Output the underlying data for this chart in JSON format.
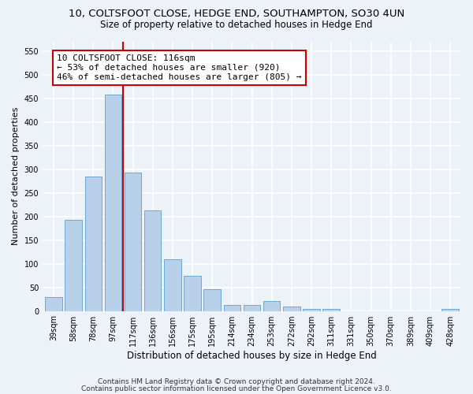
{
  "title1": "10, COLTSFOOT CLOSE, HEDGE END, SOUTHAMPTON, SO30 4UN",
  "title2": "Size of property relative to detached houses in Hedge End",
  "xlabel": "Distribution of detached houses by size in Hedge End",
  "ylabel": "Number of detached properties",
  "categories": [
    "39sqm",
    "58sqm",
    "78sqm",
    "97sqm",
    "117sqm",
    "136sqm",
    "156sqm",
    "175sqm",
    "195sqm",
    "214sqm",
    "234sqm",
    "253sqm",
    "272sqm",
    "292sqm",
    "311sqm",
    "331sqm",
    "350sqm",
    "370sqm",
    "389sqm",
    "409sqm",
    "428sqm"
  ],
  "values": [
    30,
    192,
    285,
    457,
    293,
    213,
    109,
    74,
    46,
    13,
    13,
    21,
    10,
    5,
    5,
    0,
    0,
    0,
    0,
    0,
    5
  ],
  "bar_color": "#b8d0ea",
  "bar_edge_color": "#6aaad4",
  "vline_x": 3.5,
  "vline_color": "#cc0000",
  "annotation_line1": "10 COLTSFOOT CLOSE: 116sqm",
  "annotation_line2": "← 53% of detached houses are smaller (920)",
  "annotation_line3": "46% of semi-detached houses are larger (805) →",
  "annotation_box_color": "#ffffff",
  "annotation_box_edge": "#cc0000",
  "ylim": [
    0,
    570
  ],
  "yticks": [
    0,
    50,
    100,
    150,
    200,
    250,
    300,
    350,
    400,
    450,
    500,
    550
  ],
  "bg_color": "#edf1f8",
  "grid_color": "#ffffff",
  "title1_fontsize": 9.5,
  "title2_fontsize": 8.5,
  "xlabel_fontsize": 8.5,
  "ylabel_fontsize": 8,
  "tick_fontsize": 7,
  "annot_fontsize": 8,
  "footer_fontsize": 6.5,
  "footer1": "Contains HM Land Registry data © Crown copyright and database right 2024.",
  "footer2": "Contains public sector information licensed under the Open Government Licence v3.0."
}
